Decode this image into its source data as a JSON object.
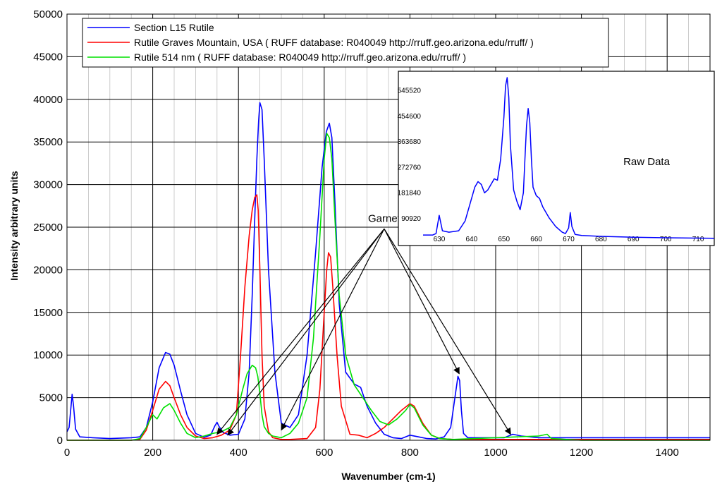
{
  "chart_data": {
    "type": "line",
    "xlabel": "Wavenumber (cm-1)",
    "ylabel": "Intensity arbitrary units",
    "xlim": [
      0,
      1500
    ],
    "ylim": [
      0,
      50000
    ],
    "grid": true,
    "legend_position": "top-left",
    "x_ticks": [
      "0",
      "200",
      "400",
      "600",
      "800",
      "1000",
      "1200",
      "1400"
    ],
    "y_ticks": [
      "0",
      "5000",
      "10000",
      "15000",
      "20000",
      "25000",
      "30000",
      "35000",
      "40000",
      "45000",
      "50000"
    ],
    "series": [
      {
        "name": "Section L15 Rutile",
        "color": "#0000ff",
        "x": [
          0,
          5,
          12,
          15,
          20,
          30,
          60,
          100,
          150,
          170,
          185,
          200,
          215,
          230,
          240,
          250,
          265,
          280,
          300,
          320,
          335,
          345,
          350,
          355,
          365,
          380,
          400,
          415,
          425,
          432,
          438,
          443,
          447,
          450,
          455,
          460,
          470,
          485,
          500,
          520,
          540,
          560,
          580,
          595,
          605,
          612,
          618,
          625,
          635,
          650,
          670,
          685,
          700,
          720,
          740,
          760,
          780,
          800,
          820,
          840,
          860,
          880,
          895,
          905,
          912,
          916,
          920,
          925,
          935,
          950,
          980,
          1000,
          1020,
          1040,
          1060,
          1100,
          1200,
          1300,
          1400,
          1500
        ],
        "y": [
          1000,
          1500,
          5400,
          4200,
          1300,
          400,
          300,
          200,
          300,
          400,
          1500,
          4500,
          8500,
          10300,
          10100,
          8800,
          5800,
          3000,
          800,
          350,
          600,
          1700,
          2100,
          1600,
          900,
          600,
          700,
          2500,
          8000,
          17000,
          26000,
          33000,
          37500,
          39600,
          38800,
          33000,
          20000,
          8000,
          2000,
          1500,
          3000,
          10000,
          22000,
          32000,
          36200,
          37200,
          35500,
          28000,
          16000,
          8000,
          6600,
          6200,
          4000,
          2000,
          700,
          300,
          200,
          600,
          400,
          200,
          150,
          400,
          1500,
          5000,
          7500,
          7000,
          3500,
          800,
          300,
          300,
          300,
          300,
          300,
          700,
          500,
          300,
          300,
          300,
          300,
          300
        ]
      },
      {
        "name": "Rutile Graves Mountain, USA ( RUFF database:  R040049 http://rruff.geo.arizona.edu/rruff/ )",
        "color": "#ff0000",
        "x": [
          0,
          150,
          170,
          185,
          200,
          215,
          230,
          240,
          250,
          265,
          280,
          300,
          320,
          340,
          360,
          380,
          395,
          405,
          415,
          425,
          432,
          438,
          443,
          446,
          450,
          455,
          460,
          470,
          480,
          500,
          520,
          560,
          580,
          590,
          600,
          606,
          610,
          615,
          620,
          630,
          640,
          660,
          680,
          700,
          720,
          740,
          760,
          780,
          800,
          810,
          830,
          850,
          870,
          900,
          1000,
          1100,
          1200,
          1300,
          1400,
          1500
        ],
        "y": [
          0,
          0,
          100,
          1200,
          3500,
          6000,
          6900,
          6400,
          5000,
          3000,
          1500,
          500,
          200,
          300,
          600,
          1200,
          3000,
          10000,
          18000,
          24000,
          27000,
          28500,
          28800,
          27000,
          20000,
          10000,
          4000,
          1000,
          300,
          100,
          100,
          200,
          1500,
          6000,
          15000,
          20000,
          22000,
          21500,
          18000,
          10000,
          4000,
          700,
          600,
          300,
          800,
          1500,
          2500,
          3500,
          4300,
          4000,
          2000,
          600,
          200,
          100,
          100,
          100,
          100,
          100,
          100,
          100
        ]
      },
      {
        "name": "Rutile 514 nm ( RUFF database: R040049  http://rruff.geo.arizona.edu/rruff/ )",
        "color": "#00e000",
        "x": [
          0,
          150,
          170,
          185,
          200,
          210,
          225,
          240,
          250,
          265,
          280,
          300,
          320,
          340,
          360,
          380,
          395,
          410,
          420,
          432,
          440,
          445,
          450,
          455,
          460,
          470,
          480,
          490,
          500,
          520,
          540,
          560,
          575,
          590,
          600,
          606,
          612,
          618,
          625,
          635,
          650,
          670,
          690,
          710,
          730,
          750,
          770,
          790,
          800,
          810,
          830,
          850,
          870,
          900,
          1000,
          1050,
          1100,
          1120,
          1130,
          1200,
          1300,
          1400,
          1500
        ],
        "y": [
          0,
          0,
          200,
          1500,
          3000,
          2500,
          3800,
          4300,
          3500,
          2000,
          800,
          300,
          500,
          800,
          1000,
          1500,
          3000,
          6000,
          7800,
          8800,
          8500,
          7500,
          5500,
          3000,
          1600,
          800,
          500,
          400,
          300,
          800,
          2000,
          5000,
          12000,
          24000,
          33000,
          36000,
          35500,
          33000,
          26000,
          17000,
          10000,
          6500,
          5000,
          3500,
          2200,
          1800,
          2500,
          3500,
          4200,
          3800,
          1800,
          600,
          200,
          100,
          300,
          400,
          500,
          700,
          200,
          0,
          0,
          0,
          0
        ]
      }
    ],
    "annotations": [
      {
        "text": "Garnet",
        "x": 740,
        "y": 25300
      },
      {
        "text": "Raw Data"
      }
    ],
    "inset": {
      "type": "line",
      "title": "Raw Data",
      "xlim": [
        625,
        715
      ],
      "ylim": [
        0,
        600000
      ],
      "x_ticks": [
        "630",
        "640",
        "650",
        "660",
        "670",
        "680",
        "690",
        "700",
        "710"
      ],
      "y_ticks": [
        "90920",
        "181840",
        "272760",
        "363680",
        "454600",
        "545520"
      ],
      "series": [
        {
          "name": "",
          "color": "#0000ff",
          "x": [
            625,
            628,
            629,
            630,
            631,
            633,
            636,
            638,
            640,
            641,
            642,
            643,
            644,
            645,
            646,
            647,
            648,
            649,
            650,
            650.5,
            651,
            651.5,
            652,
            653,
            654,
            655,
            656,
            656.5,
            657,
            657.5,
            658,
            658.5,
            659,
            660,
            661,
            662,
            664,
            666,
            668,
            669,
            670,
            670.5,
            671,
            672,
            674,
            680,
            690,
            700,
            715
          ],
          "y": [
            30000,
            30000,
            35000,
            100000,
            45000,
            40000,
            45000,
            80000,
            160000,
            200000,
            220000,
            210000,
            180000,
            190000,
            210000,
            230000,
            225000,
            300000,
            450000,
            560000,
            590000,
            520000,
            350000,
            190000,
            150000,
            120000,
            180000,
            300000,
            420000,
            480000,
            430000,
            300000,
            200000,
            170000,
            160000,
            130000,
            90000,
            60000,
            40000,
            35000,
            55000,
            110000,
            60000,
            32000,
            28000,
            25000,
            22000,
            20000,
            18000
          ]
        }
      ]
    }
  }
}
